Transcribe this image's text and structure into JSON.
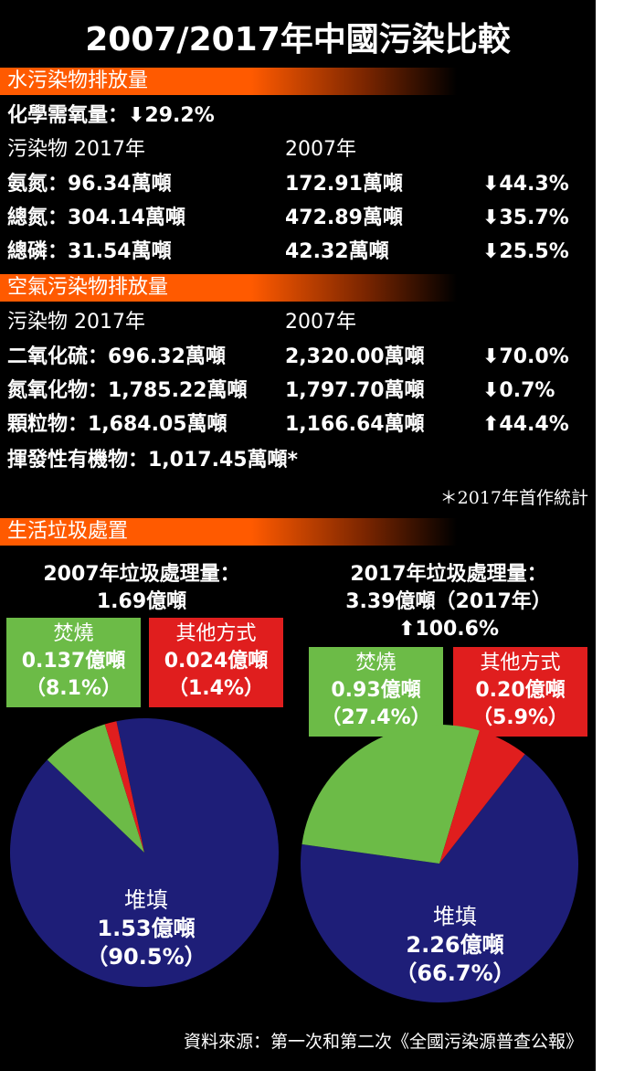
{
  "title": "2007/2017年中國污染比較",
  "water": {
    "heading": "水污染物排放量",
    "cod": "化學需氧量：⬇29.2%",
    "header": [
      "污染物 2017年",
      "2007年"
    ],
    "rows": [
      [
        "氨氮：96.34萬噸",
        "172.91萬噸",
        "⬇44.3%"
      ],
      [
        "總氮：304.14萬噸",
        "472.89萬噸",
        "⬇35.7%"
      ],
      [
        "總磷：31.54萬噸",
        "42.32萬噸",
        "⬇25.5%"
      ]
    ]
  },
  "air": {
    "heading": "空氣污染物排放量",
    "header": [
      "污染物 2017年",
      "2007年"
    ],
    "rows": [
      [
        "二氧化硫：696.32萬噸",
        "2,320.00萬噸",
        "⬇70.0%"
      ],
      [
        "氮氧化物：1,785.22萬噸",
        "1,797.70萬噸",
        "⬇0.7%"
      ],
      [
        "顆粒物：1,684.05萬噸",
        "1,166.64萬噸",
        "⬆44.4%"
      ]
    ],
    "voc": "揮發性有機物：1,017.45萬噸*"
  },
  "note": "＊2017年首作統計",
  "waste": {
    "heading": "生活垃圾處置",
    "y2007": {
      "title": [
        "2007年垃圾處理量：",
        "1.69億噸"
      ],
      "incineration": [
        "焚燒",
        "0.137億噸",
        "（8.1%）"
      ],
      "other": [
        "其他方式",
        "0.024億噸",
        "（1.4%）"
      ],
      "landfill": [
        "堆填",
        "1.53億噸",
        "（90.5%）"
      ]
    },
    "y2017": {
      "title": [
        "2017年垃圾處理量：",
        "3.39億噸（2017年）",
        "⬆100.6%"
      ],
      "incineration": [
        "焚燒",
        "0.93億噸",
        "（27.4%）"
      ],
      "other": [
        "其他方式",
        "0.20億噸",
        "（5.9%）"
      ],
      "landfill": [
        "堆填",
        "2.26億噸",
        "（66.7%）"
      ]
    }
  },
  "source": "資料來源：第一次和第二次《全國污染源普查公報》",
  "colors": {
    "landfill": "#1e1e78",
    "incineration": "#6cbb47",
    "other": "#e01e1e",
    "accent": "#ff5a00"
  },
  "chart_data": [
    {
      "type": "pie",
      "title": "2007年垃圾處理量：1.69億噸",
      "categories": [
        "焚燒",
        "其他方式",
        "堆填"
      ],
      "values": [
        0.137,
        0.024,
        1.53
      ],
      "percent": [
        8.1,
        1.4,
        90.5
      ]
    },
    {
      "type": "pie",
      "title": "2017年垃圾處理量：3.39億噸",
      "categories": [
        "焚燒",
        "其他方式",
        "堆填"
      ],
      "values": [
        0.93,
        0.2,
        2.26
      ],
      "percent": [
        27.4,
        5.9,
        66.7
      ]
    }
  ]
}
